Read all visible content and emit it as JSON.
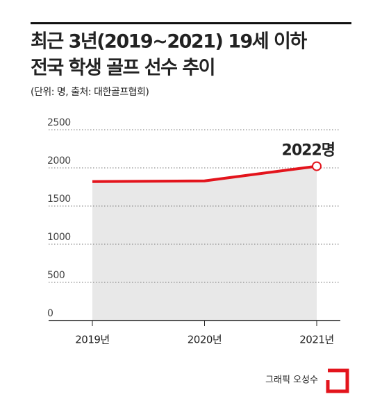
{
  "chart_data": {
    "type": "area-line",
    "title": [
      "최근 3년(2019~2021) 19세 이하",
      "전국 학생 골프 선수 추이"
    ],
    "note": "(단위: 명, 출처: 대한골프협회)",
    "categories": [
      "2019년",
      "2020년",
      "2021년"
    ],
    "values": [
      1820,
      1830,
      2022
    ],
    "value_labels": [
      null,
      null,
      "2022명"
    ],
    "color": "#e3141c",
    "area_color": "#e8e8e8",
    "ylim": [
      0,
      2500
    ],
    "yticks": [
      0,
      500,
      1000,
      1500,
      2000,
      2500
    ],
    "grid": true,
    "credit": "그래픽 오성수"
  }
}
